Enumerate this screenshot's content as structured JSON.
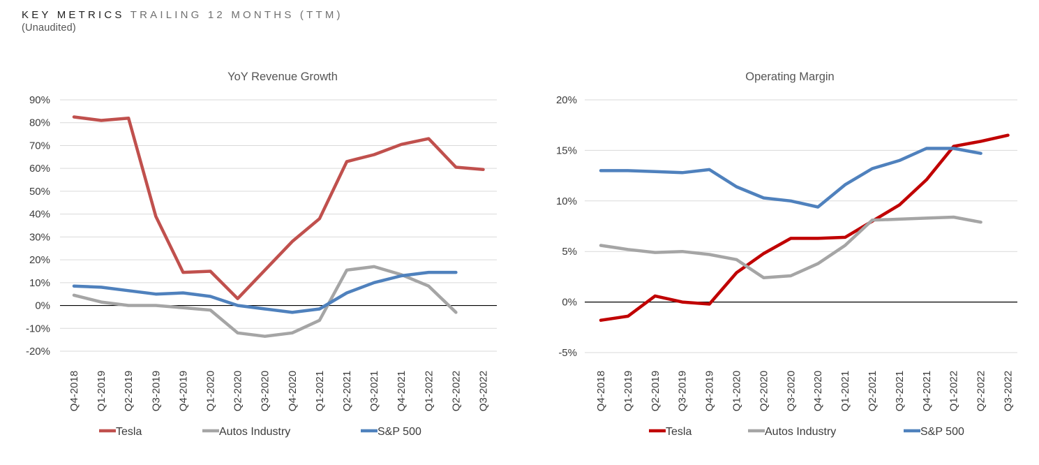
{
  "header": {
    "title_strong": "KEY METRICS",
    "title_light": "TRAILING 12 MONTHS (TTM)",
    "subtitle": "(Unaudited)"
  },
  "chart_data": [
    {
      "type": "line",
      "title": "YoY Revenue Growth",
      "xlabel": "",
      "ylabel": "",
      "ylim": [
        -20,
        90
      ],
      "y_ticks": [
        "90%",
        "80%",
        "70%",
        "60%",
        "50%",
        "40%",
        "30%",
        "20%",
        "10%",
        "0%",
        "-10%",
        "-20%"
      ],
      "categories": [
        "Q4-2018",
        "Q1-2019",
        "Q2-2019",
        "Q3-2019",
        "Q4-2019",
        "Q1-2020",
        "Q2-2020",
        "Q3-2020",
        "Q4-2020",
        "Q1-2021",
        "Q2-2021",
        "Q3-2021",
        "Q4-2021",
        "Q1-2022",
        "Q2-2022",
        "Q3-2022"
      ],
      "series": [
        {
          "name": "Tesla",
          "color": "#c0504d",
          "values": [
            82.5,
            81,
            82,
            39,
            14.5,
            15,
            3,
            15.5,
            28,
            38,
            63,
            66,
            70.5,
            73,
            60.5,
            59.5
          ]
        },
        {
          "name": "Autos Industry",
          "color": "#a5a5a5",
          "values": [
            4.5,
            1.5,
            0,
            0,
            -1,
            -2,
            -12,
            -13.5,
            -12,
            -6.5,
            15.5,
            17,
            13.5,
            8.5,
            -3,
            null
          ]
        },
        {
          "name": "S&P 500",
          "color": "#4f81bd",
          "values": [
            8.5,
            8,
            6.5,
            5,
            5.5,
            4,
            0,
            -1.5,
            -3,
            -1.5,
            5.5,
            10,
            13,
            14.5,
            14.5,
            null
          ]
        }
      ],
      "legend_position": "bottom"
    },
    {
      "type": "line",
      "title": "Operating Margin",
      "xlabel": "",
      "ylabel": "",
      "ylim": [
        -5,
        20
      ],
      "y_ticks": [
        "20%",
        "15%",
        "10%",
        "5%",
        "0%",
        "-5%"
      ],
      "categories": [
        "Q4-2018",
        "Q1-2019",
        "Q2-2019",
        "Q3-2019",
        "Q4-2019",
        "Q1-2020",
        "Q2-2020",
        "Q3-2020",
        "Q4-2020",
        "Q1-2021",
        "Q2-2021",
        "Q3-2021",
        "Q4-2021",
        "Q1-2022",
        "Q2-2022",
        "Q3-2022"
      ],
      "series": [
        {
          "name": "Tesla",
          "color": "#c00000",
          "values": [
            -1.8,
            -1.4,
            0.6,
            0,
            -0.2,
            2.9,
            4.8,
            6.3,
            6.3,
            6.4,
            8,
            9.6,
            12.1,
            15.4,
            15.9,
            16.5
          ]
        },
        {
          "name": "Autos Industry",
          "color": "#a5a5a5",
          "values": [
            5.6,
            5.2,
            4.9,
            5,
            4.7,
            4.2,
            2.4,
            2.6,
            3.8,
            5.6,
            8.1,
            8.2,
            8.3,
            8.4,
            7.9,
            null
          ]
        },
        {
          "name": "S&P 500",
          "color": "#4f81bd",
          "values": [
            13,
            13,
            12.9,
            12.8,
            13.1,
            11.4,
            10.3,
            10,
            9.4,
            11.6,
            13.2,
            14,
            15.2,
            15.2,
            14.7,
            null
          ]
        }
      ],
      "legend_position": "bottom"
    }
  ]
}
